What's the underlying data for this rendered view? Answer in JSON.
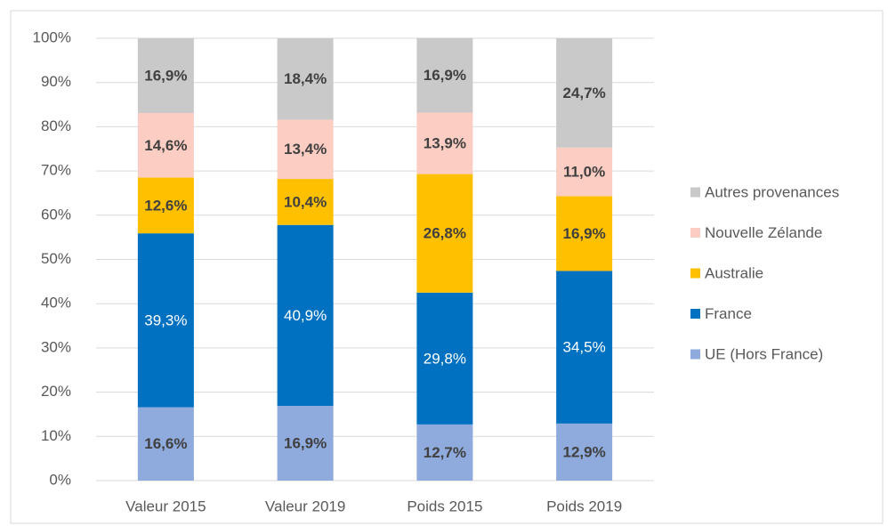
{
  "chart_data": {
    "type": "stacked_bar",
    "categories": [
      "Valeur 2015",
      "Valeur 2019",
      "Poids 2015",
      "Poids 2019"
    ],
    "series": [
      {
        "name": "UE (Hors France)",
        "color": "#8faadc",
        "values": [
          16.6,
          16.9,
          12.7,
          12.9
        ],
        "value_labels": [
          "16,6%",
          "16,9%",
          "12,7%",
          "12,9%"
        ]
      },
      {
        "name": "France",
        "color": "#0070c0",
        "values": [
          39.3,
          40.9,
          29.8,
          34.5
        ],
        "value_labels": [
          "39,3%",
          "40,9%",
          "29,8%",
          "34,5%"
        ]
      },
      {
        "name": "Australie",
        "color": "#ffc000",
        "values": [
          12.6,
          10.4,
          26.8,
          16.9
        ],
        "value_labels": [
          "12,6%",
          "10,4%",
          "26,8%",
          "16,9%"
        ]
      },
      {
        "name": "Nouvelle Zélande",
        "color": "#fbcdc3",
        "values": [
          14.6,
          13.4,
          13.9,
          11.0
        ],
        "value_labels": [
          "14,6%",
          "13,4%",
          "13,9%",
          "11,0%"
        ]
      },
      {
        "name": "Autres provenances",
        "color": "#c9c9c9",
        "values": [
          16.9,
          18.4,
          16.9,
          24.7
        ],
        "value_labels": [
          "16,9%",
          "18,4%",
          "16,9%",
          "24,7%"
        ]
      }
    ],
    "ylim": [
      0,
      100
    ],
    "yticks": [
      {
        "value": 0,
        "label": "0%"
      },
      {
        "value": 10,
        "label": "10%"
      },
      {
        "value": 20,
        "label": "20%"
      },
      {
        "value": 30,
        "label": "30%"
      },
      {
        "value": 40,
        "label": "40%"
      },
      {
        "value": 50,
        "label": "50%"
      },
      {
        "value": 60,
        "label": "60%"
      },
      {
        "value": 70,
        "label": "70%"
      },
      {
        "value": 80,
        "label": "80%"
      },
      {
        "value": 90,
        "label": "90%"
      },
      {
        "value": 100,
        "label": "100%"
      }
    ],
    "grid": true,
    "legend": "right"
  }
}
